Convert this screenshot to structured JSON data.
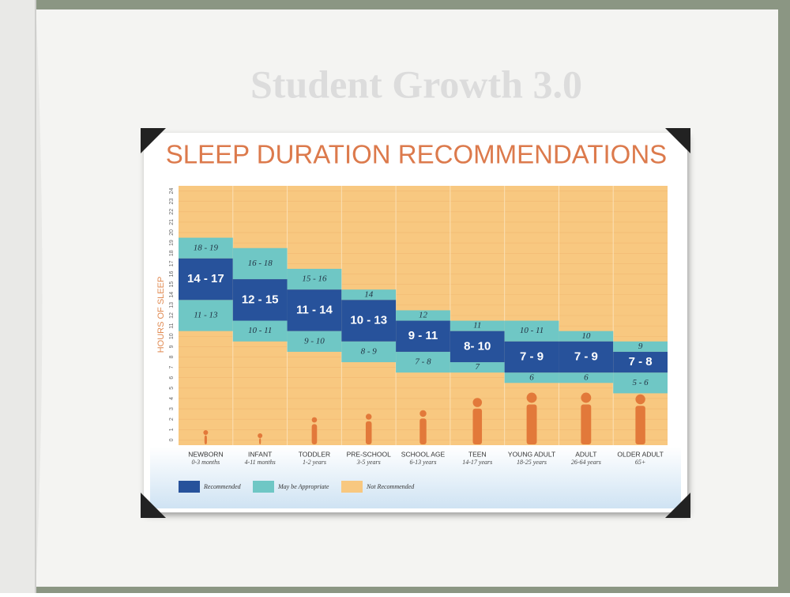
{
  "slide_title": "Student Growth 3.0",
  "chart_data": {
    "type": "range-bar",
    "title": "SLEEP DURATION RECOMMENDATIONS",
    "y_label": "HOURS OF SLEEP",
    "categories": [
      "NEWBORN",
      "INFANT",
      "TODDLER",
      "PRE-SCHOOL",
      "SCHOOL AGE",
      "TEEN",
      "YOUNG ADULT",
      "ADULT",
      "OLDER ADULT"
    ],
    "category_sublabels": [
      "0-3 months",
      "4-11 months",
      "1-2 years",
      "3-5 years",
      "6-13 years",
      "14-17 years",
      "18-25 years",
      "26-64 years",
      "65+"
    ],
    "ylim": [
      0,
      24
    ],
    "yticks": [
      0,
      1,
      2,
      3,
      4,
      5,
      6,
      7,
      8,
      9,
      10,
      11,
      12,
      13,
      14,
      15,
      16,
      17,
      18,
      19,
      20,
      21,
      22,
      23,
      24
    ],
    "series": [
      {
        "name": "Recommended",
        "color": "#27529b",
        "low": [
          14,
          12,
          11,
          10,
          9,
          8,
          7,
          7,
          7
        ],
        "high": [
          17,
          15,
          14,
          13,
          11,
          10,
          9,
          9,
          8
        ],
        "value_labels": [
          "14 - 17",
          "12 - 15",
          "11 - 14",
          "10 - 13",
          "9 - 11",
          "8- 10",
          "7 - 9",
          "7 - 9",
          "7 - 8"
        ]
      },
      {
        "name": "May be Appropriate",
        "color": "#6fc7c5",
        "upper_low": [
          18,
          16,
          15,
          14,
          12,
          11,
          10,
          10,
          9
        ],
        "upper_high": [
          19,
          18,
          16,
          14,
          12,
          11,
          11,
          10,
          9
        ],
        "upper_labels": [
          "18 - 19",
          "16 - 18",
          "15 - 16",
          "14",
          "12",
          "11",
          "10 - 11",
          "10",
          "9"
        ],
        "lower_low": [
          11,
          10,
          9,
          8,
          7,
          7,
          6,
          6,
          5
        ],
        "lower_high": [
          13,
          11,
          10,
          9,
          8,
          7,
          6,
          6,
          6
        ],
        "lower_labels": [
          "11 - 13",
          "10 - 11",
          "9 - 10",
          "8 - 9",
          "7 - 8",
          "7",
          "6",
          "6",
          "5 - 6"
        ]
      },
      {
        "name": "Not Recommended",
        "color": "#f8c880"
      }
    ]
  }
}
